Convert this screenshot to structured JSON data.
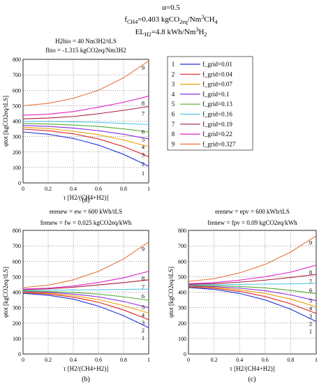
{
  "header": {
    "line1": "α=0.5",
    "line2": "f_CH4=0.403 kgCO2eq/Nm3CH4",
    "line3": "EL_H2=4.8 kWh/Nm3H2"
  },
  "chart_data": [
    {
      "type": "line",
      "panel_label": "(a)",
      "subtitle_lines": [
        "H2bio = 40 Nm3H2/tLS",
        "fbio = -1.315 kgCO2eq/Nm3H2"
      ],
      "xlabel": "τ [H2/(CH4+H2)]",
      "ylabel": "φtot [kgCO2eq/tLS]",
      "xlim": [
        0,
        1
      ],
      "ylim": [
        0,
        800
      ],
      "xticks": [
        0,
        0.2,
        0.4,
        0.6,
        0.8,
        1
      ],
      "yticks": [
        0,
        100,
        200,
        300,
        400,
        500,
        600,
        700,
        800
      ],
      "x": [
        0,
        0.2,
        0.4,
        0.6,
        0.8,
        1
      ],
      "series": [
        {
          "id": "1",
          "values": [
            330,
            315,
            288,
            245,
            185,
            108
          ]
        },
        {
          "id": "2",
          "values": [
            348,
            338,
            318,
            285,
            235,
            170
          ]
        },
        {
          "id": "3",
          "values": [
            360,
            352,
            335,
            312,
            278,
            235
          ]
        },
        {
          "id": "4",
          "values": [
            372,
            366,
            355,
            338,
            315,
            285
          ]
        },
        {
          "id": "5",
          "values": [
            385,
            381,
            375,
            366,
            350,
            330
          ]
        },
        {
          "id": "6",
          "values": [
            398,
            398,
            395,
            392,
            385,
            378
          ]
        },
        {
          "id": "7",
          "values": [
            415,
            420,
            430,
            448,
            470,
            495
          ]
        },
        {
          "id": "8",
          "values": [
            438,
            445,
            462,
            490,
            522,
            562
          ]
        },
        {
          "id": "9",
          "values": [
            500,
            515,
            548,
            600,
            680,
            790
          ]
        }
      ]
    },
    {
      "type": "line",
      "panel_label": "(b)",
      "subtitle_lines": [
        "erenew = ew = 600 kWh/tLS",
        "frenew = fw = 0.025 kgCO2eq/kWh"
      ],
      "xlabel": "τ [H2/(CH4+H2)]",
      "ylabel": "φtot [kgCO2eq/tLS]",
      "xlim": [
        0,
        1
      ],
      "ylim": [
        0,
        800
      ],
      "xticks": [
        0,
        0.2,
        0.4,
        0.6,
        0.8,
        1
      ],
      "yticks": [
        0,
        100,
        200,
        300,
        400,
        500,
        600,
        700,
        800
      ],
      "x": [
        0,
        0.2,
        0.4,
        0.6,
        0.8,
        1
      ],
      "series": [
        {
          "id": "1",
          "values": [
            393,
            380,
            355,
            310,
            248,
            170
          ]
        },
        {
          "id": "2",
          "values": [
            398,
            388,
            368,
            335,
            285,
            222
          ]
        },
        {
          "id": "3",
          "values": [
            401,
            394,
            378,
            352,
            313,
            265
          ]
        },
        {
          "id": "4",
          "values": [
            404,
            399,
            388,
            370,
            340,
            300
          ]
        },
        {
          "id": "5",
          "values": [
            408,
            405,
            398,
            388,
            370,
            348
          ]
        },
        {
          "id": "6",
          "values": [
            413,
            414,
            414,
            416,
            418,
            420
          ]
        },
        {
          "id": "7",
          "values": [
            417,
            422,
            432,
            447,
            462,
            480
          ]
        },
        {
          "id": "8",
          "values": [
            420,
            426,
            440,
            463,
            493,
            535
          ]
        },
        {
          "id": "9",
          "values": [
            430,
            445,
            480,
            535,
            615,
            725
          ]
        }
      ]
    },
    {
      "type": "line",
      "panel_label": "(c)",
      "subtitle_lines": [
        "erenew = epv = 600 kWh/tLS",
        "frenew = fpv = 0.09 kgCO2eq/kWh"
      ],
      "xlabel": "τ [H2/(CH4+H2)]",
      "ylabel": "φtot [kgCO2eq/tLS]",
      "xlim": [
        0,
        1
      ],
      "ylim": [
        0,
        800
      ],
      "xticks": [
        0,
        0.2,
        0.4,
        0.6,
        0.8,
        1
      ],
      "yticks": [
        0,
        100,
        200,
        300,
        400,
        500,
        600,
        700,
        800
      ],
      "x": [
        0,
        0.2,
        0.4,
        0.6,
        0.8,
        1
      ],
      "series": [
        {
          "id": "1",
          "values": [
            430,
            418,
            392,
            350,
            290,
            210
          ]
        },
        {
          "id": "2",
          "values": [
            434,
            425,
            405,
            372,
            325,
            262
          ]
        },
        {
          "id": "3",
          "values": [
            437,
            431,
            415,
            392,
            355,
            305
          ]
        },
        {
          "id": "4",
          "values": [
            440,
            436,
            426,
            410,
            382,
            345
          ]
        },
        {
          "id": "5",
          "values": [
            444,
            442,
            437,
            428,
            412,
            390
          ]
        },
        {
          "id": "6",
          "values": [
            448,
            449,
            450,
            452,
            454,
            458
          ]
        },
        {
          "id": "7",
          "values": [
            451,
            455,
            465,
            478,
            495,
            515
          ]
        },
        {
          "id": "8",
          "values": [
            455,
            462,
            478,
            500,
            530,
            575
          ]
        },
        {
          "id": "9",
          "values": [
            470,
            487,
            525,
            580,
            660,
            765
          ]
        }
      ]
    }
  ],
  "legend": {
    "items": [
      {
        "id": "1",
        "label": "f_grid=0.01",
        "color": "#2233dd"
      },
      {
        "id": "2",
        "label": "f_grid=0.04",
        "color": "#dd2222"
      },
      {
        "id": "3",
        "label": "f_grid=0.07",
        "color": "#e8a000"
      },
      {
        "id": "4",
        "label": "f_grid=0.1",
        "color": "#8a2be2"
      },
      {
        "id": "5",
        "label": "f_grid=0.13",
        "color": "#55aa33"
      },
      {
        "id": "6",
        "label": "f_grid=0.16",
        "color": "#55c8e8"
      },
      {
        "id": "7",
        "label": "f_grid=0.19",
        "color": "#a8203a"
      },
      {
        "id": "8",
        "label": "f_grid=0.22",
        "color": "#e020c8"
      },
      {
        "id": "9",
        "label": "f_grid=0.327",
        "color": "#e8733a"
      }
    ]
  }
}
